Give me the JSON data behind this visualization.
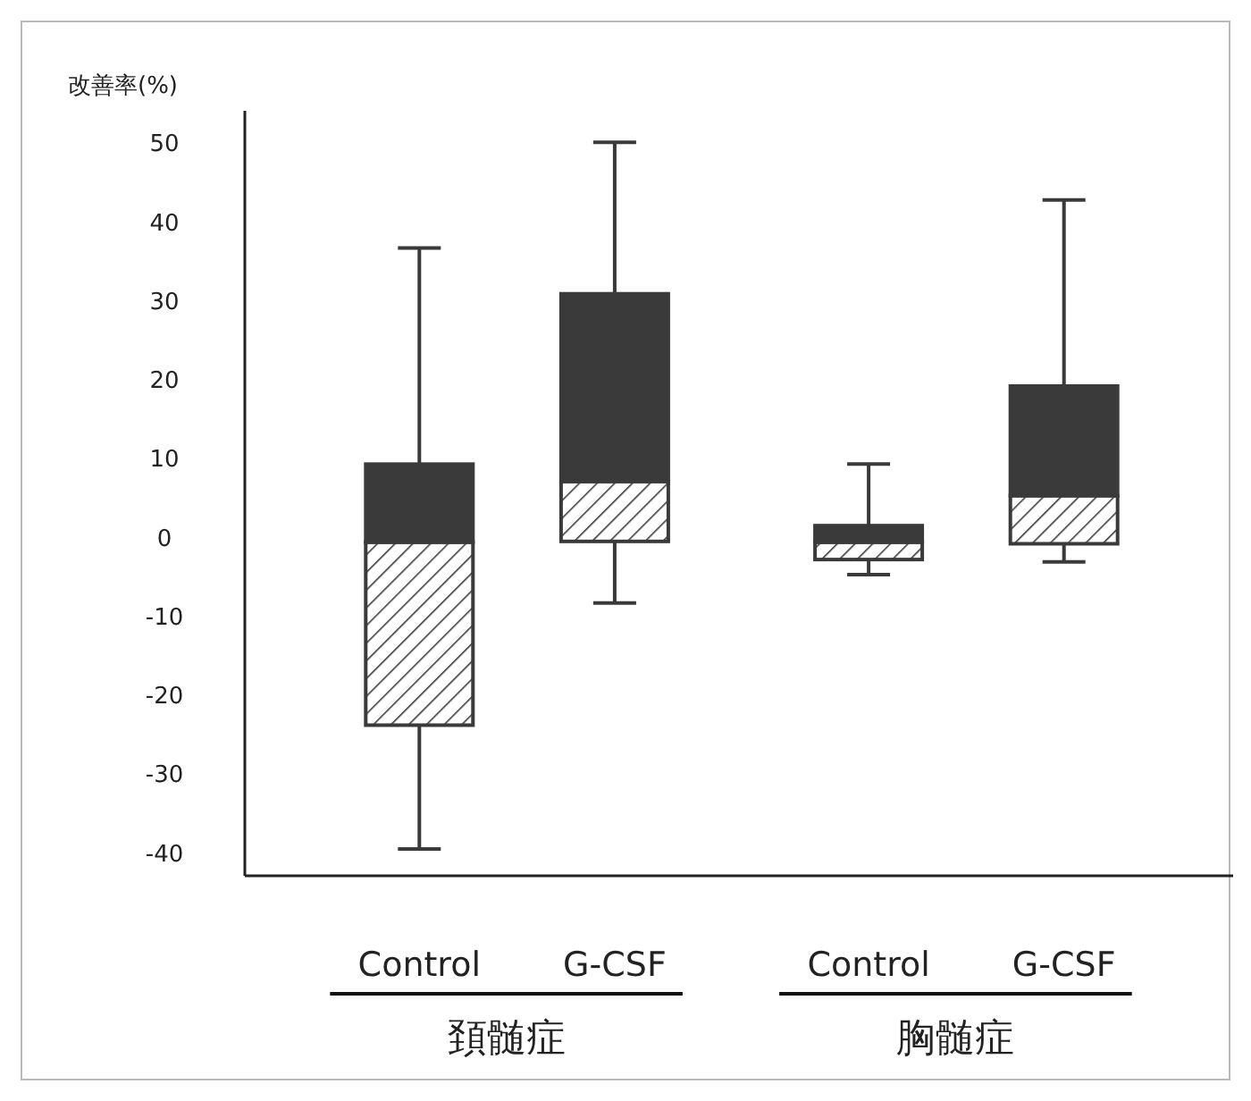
{
  "chart_data": {
    "type": "box",
    "ylabel": "改善率(%)",
    "categories": [
      "Control",
      "G-CSF",
      "Control",
      "G-CSF"
    ],
    "boxes": [
      {
        "low": -39.6,
        "q1": -23.9,
        "median": -0.7,
        "q3": 9.2,
        "high": 36.6
      },
      {
        "low": -8.4,
        "q1": -0.6,
        "median": 7.0,
        "q3": 30.8,
        "high": 50
      },
      {
        "low": -4.8,
        "q1": -2.9,
        "median": -0.7,
        "q3": 1.4,
        "high": 9.2
      },
      {
        "low": -3.2,
        "q1": -0.9,
        "median": 5.2,
        "q3": 19.1,
        "high": 42.7
      }
    ],
    "color": "#3a3a3a",
    "ylim": [
      -43,
      54
    ],
    "yticks": [
      -40,
      -30,
      -20,
      -10,
      0,
      10,
      20,
      30,
      40,
      50
    ],
    "annotations": [
      "頚髄症",
      "胸髄症"
    ]
  }
}
